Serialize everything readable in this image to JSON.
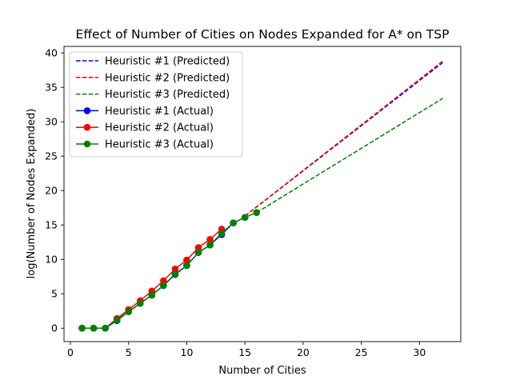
{
  "chart_data": {
    "type": "line",
    "title": "Effect of Number of Cities on Nodes Expanded for A* on TSP",
    "xlabel": "Number of Cities",
    "ylabel": "log(Number of Nodes Expanded)",
    "xlim": [
      -0.55,
      33.55
    ],
    "ylim": [
      -1.95,
      40.95
    ],
    "xticks": [
      0,
      5,
      10,
      15,
      20,
      25,
      30
    ],
    "yticks": [
      0,
      5,
      10,
      15,
      20,
      25,
      30,
      35,
      40
    ],
    "grid": false,
    "legend_position": "upper-left",
    "series": [
      {
        "name": "Heuristic #1 (Predicted)",
        "style": "dashed",
        "color": "#0000ff",
        "x": [
          15,
          32
        ],
        "y": [
          16.3,
          38.6
        ]
      },
      {
        "name": "Heuristic #2 (Predicted)",
        "style": "dashed",
        "color": "#ff0000",
        "x": [
          15,
          32
        ],
        "y": [
          16.3,
          38.8
        ]
      },
      {
        "name": "Heuristic #3 (Predicted)",
        "style": "dashed",
        "color": "#008000",
        "x": [
          16,
          32
        ],
        "y": [
          16.8,
          33.4
        ]
      },
      {
        "name": "Heuristic #1 (Actual)",
        "style": "solid-marker",
        "color": "#0000ff",
        "x": [
          1,
          2,
          3,
          4,
          5,
          6,
          7,
          8,
          9,
          10,
          11,
          12,
          13,
          14,
          15
        ],
        "y": [
          0,
          0,
          0,
          1.1,
          2.4,
          3.6,
          4.8,
          6.2,
          7.8,
          9.1,
          11.0,
          12.1,
          13.6,
          15.3,
          16.1
        ]
      },
      {
        "name": "Heuristic #2 (Actual)",
        "style": "solid-marker",
        "color": "#ff0000",
        "x": [
          1,
          2,
          3,
          4,
          5,
          6,
          7,
          8,
          9,
          10,
          11,
          12,
          13
        ],
        "y": [
          0,
          0,
          0,
          1.4,
          2.7,
          4.0,
          5.4,
          6.9,
          8.6,
          9.9,
          11.7,
          12.9,
          14.4
        ]
      },
      {
        "name": "Heuristic #3 (Actual)",
        "style": "solid-marker",
        "color": "#008000",
        "x": [
          1,
          2,
          3,
          4,
          5,
          6,
          7,
          8,
          9,
          10,
          11,
          12,
          13,
          14,
          15,
          16
        ],
        "y": [
          0,
          0,
          0,
          1.2,
          2.4,
          3.6,
          4.8,
          6.2,
          7.9,
          9.1,
          11.0,
          12.1,
          13.8,
          15.3,
          16.1,
          16.8
        ]
      }
    ]
  }
}
